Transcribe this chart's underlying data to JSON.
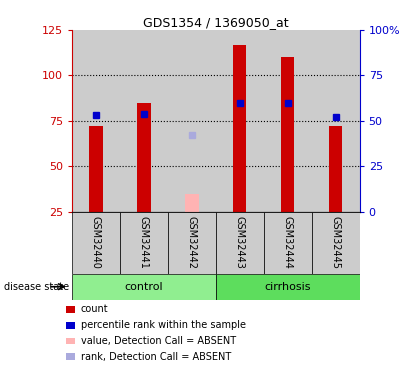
{
  "title": "GDS1354 / 1369050_at",
  "samples": [
    "GSM32440",
    "GSM32441",
    "GSM32442",
    "GSM32443",
    "GSM32444",
    "GSM32445"
  ],
  "count_values": [
    72,
    85,
    null,
    117,
    110,
    72
  ],
  "absent_value": 35,
  "percentile_values": [
    53,
    54,
    null,
    60,
    60,
    52
  ],
  "absent_percentile": 42,
  "absent_sample_index": 2,
  "groups": [
    {
      "label": "control",
      "indices": [
        0,
        1,
        2
      ],
      "color": "#90ee90"
    },
    {
      "label": "cirrhosis",
      "indices": [
        3,
        4,
        5
      ],
      "color": "#5ddd5d"
    }
  ],
  "ylim_left": [
    25,
    125
  ],
  "ylim_right": [
    0,
    100
  ],
  "yticks_left": [
    25,
    50,
    75,
    100,
    125
  ],
  "yticks_right": [
    0,
    25,
    50,
    75,
    100
  ],
  "ytick_labels_right": [
    "0",
    "25",
    "50",
    "75",
    "100%"
  ],
  "hlines": [
    50,
    75,
    100
  ],
  "bar_color": "#cc0000",
  "absent_bar_color": "#ffb3b3",
  "percentile_color": "#0000cc",
  "absent_rank_color": "#aaaadd",
  "left_tick_color": "#cc0000",
  "right_tick_color": "#0000cc",
  "bar_width": 0.28,
  "percentile_marker_size": 5,
  "sample_bg_color": "#cccccc",
  "legend_items": [
    {
      "color": "#cc0000",
      "label": "count"
    },
    {
      "color": "#0000cc",
      "label": "percentile rank within the sample"
    },
    {
      "color": "#ffb3b3",
      "label": "value, Detection Call = ABSENT"
    },
    {
      "color": "#aaaadd",
      "label": "rank, Detection Call = ABSENT"
    }
  ]
}
